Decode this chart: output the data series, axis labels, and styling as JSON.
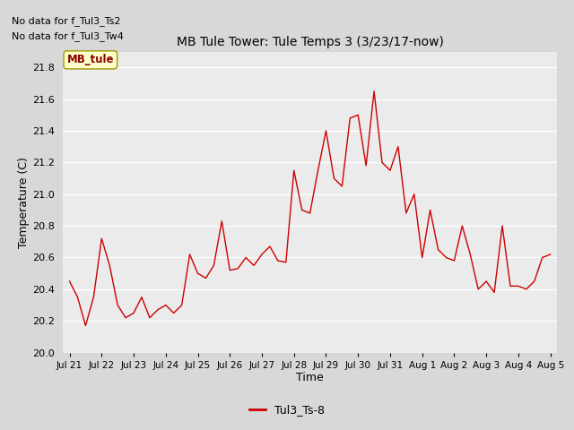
{
  "title": "MB Tule Tower: Tule Temps 3 (3/23/17-now)",
  "xlabel": "Time",
  "ylabel": "Temperature (C)",
  "no_data_text": [
    "No data for f_Tul3_Ts2",
    "No data for f_Tul3_Tw4"
  ],
  "legend_box_label": "MB_tule",
  "legend_line_label": "Tul3_Ts-8",
  "line_color": "#cc0000",
  "ylim": [
    20.0,
    21.9
  ],
  "yticks": [
    20.0,
    20.2,
    20.4,
    20.6,
    20.8,
    21.0,
    21.2,
    21.4,
    21.6,
    21.8
  ],
  "bg_color": "#d8d8d8",
  "plot_bg_color": "#ebebeb",
  "x_numeric": [
    0,
    0.25,
    0.5,
    0.75,
    1.0,
    1.25,
    1.5,
    1.75,
    2.0,
    2.25,
    2.5,
    2.75,
    3.0,
    3.25,
    3.5,
    3.75,
    4.0,
    4.25,
    4.5,
    4.75,
    5.0,
    5.25,
    5.5,
    5.75,
    6.0,
    6.25,
    6.5,
    6.75,
    7.0,
    7.25,
    7.5,
    7.75,
    8.0,
    8.25,
    8.5,
    8.75,
    9.0,
    9.25,
    9.5,
    9.75,
    10.0,
    10.25,
    10.5,
    10.75,
    11.0,
    11.25,
    11.5,
    11.75,
    12.0,
    12.25,
    12.5,
    12.75,
    13.0,
    13.25,
    13.5,
    13.75,
    14.0,
    14.25,
    14.5,
    14.75,
    15.0
  ],
  "y_values": [
    20.45,
    20.35,
    20.17,
    20.35,
    20.72,
    20.55,
    20.3,
    20.22,
    20.25,
    20.35,
    20.22,
    20.27,
    20.3,
    20.25,
    20.3,
    20.62,
    20.5,
    20.47,
    20.55,
    20.83,
    20.52,
    20.53,
    20.6,
    20.55,
    20.62,
    20.67,
    20.58,
    20.57,
    21.15,
    20.9,
    20.88,
    21.15,
    21.4,
    21.1,
    21.05,
    21.48,
    21.5,
    21.18,
    21.65,
    21.2,
    21.15,
    21.3,
    20.88,
    21.0,
    20.6,
    20.9,
    20.65,
    20.6,
    20.58,
    20.8,
    20.62,
    20.4,
    20.45,
    20.38,
    20.8,
    20.42,
    20.42,
    20.4,
    20.45,
    20.6,
    20.62
  ],
  "xtick_positions": [
    0,
    1,
    2,
    3,
    4,
    5,
    6,
    7,
    8,
    9,
    10,
    11,
    12,
    13,
    14,
    15
  ],
  "xtick_labels": [
    "Jul 21",
    "Jul 22",
    "Jul 23",
    "Jul 24",
    "Jul 25",
    "Jul 26",
    "Jul 27",
    "Jul 28",
    "Jul 29",
    "Jul 30",
    "Jul 31",
    "Aug 1",
    "Aug 2",
    "Aug 3",
    "Aug 4",
    "Aug 5"
  ]
}
